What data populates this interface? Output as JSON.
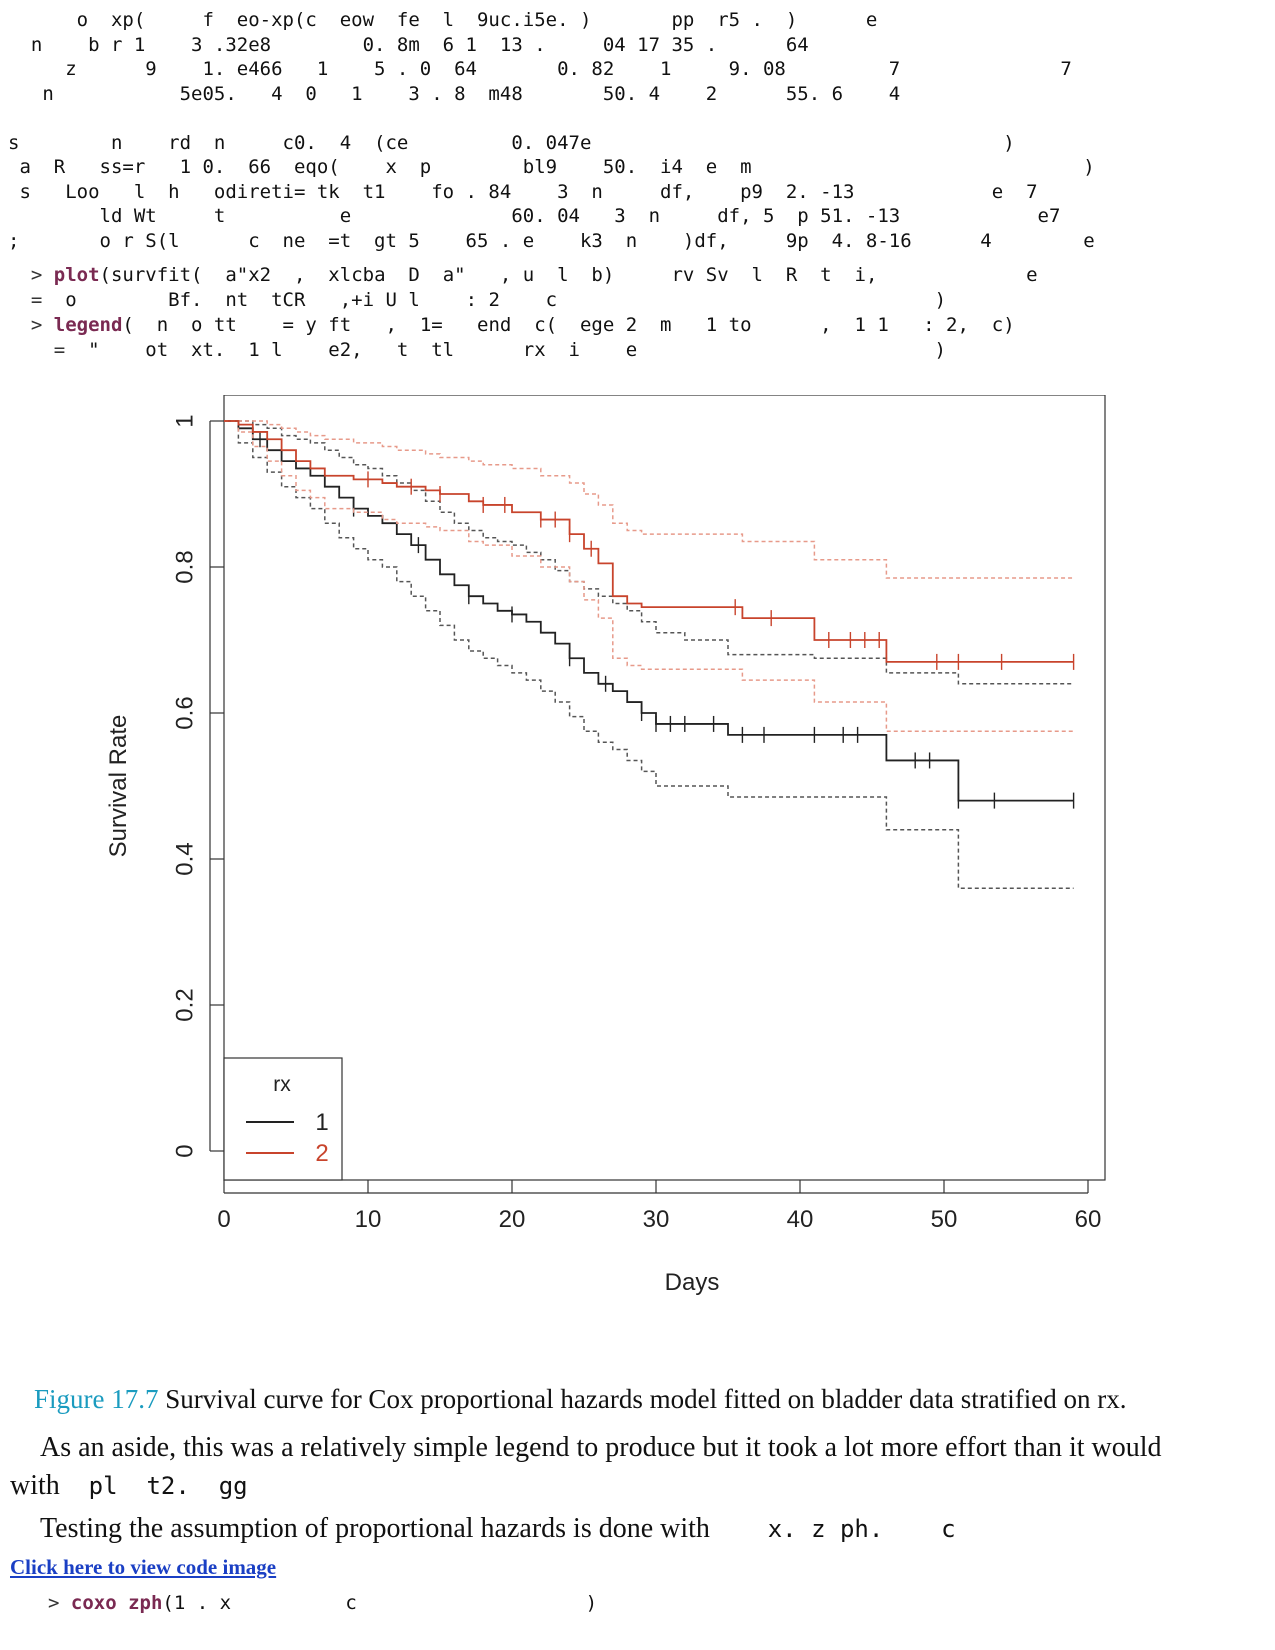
{
  "code_top": [
    "      o  xp(     f  eo-xp(c  eow  fe  l  9uc.i5e. )       pp  r5 .  )      e",
    "  n    b r 1    3 .32e8        0. 8m  6 1  13 .     04 17 35 .      64",
    "     z      9    1. e466   1    5 . 0  64       0. 82    1     9. 08         7              7",
    "   n           5e05.   4  0   1    3 . 8  m48       50. 4    2      55. 6    4",
    "",
    "s        n    rd  n     c0.  4  (ce         0. 047e                                    )",
    " a  R   ss=r   1 0.  66  eqo(    x  p        bl9    50.  i4  e  m                             )",
    " s   Loo   l  h   odireti= tk  t1    fo . 84    3  n     df,    p9  2. -13            e  7",
    "        ld Wt     t          e              60. 04   3  n     df, 5  p 51. -13            e7",
    ";       o r S(l      c  ne  =t  gt 5    65 . e    k3  n    )df,     9p  4. 8-16      4        e"
  ],
  "code_cmd": [
    {
      "prompt": "  > ",
      "fn": "plot",
      "text": "(survfit(  a\"x2  ,  xlcba  D  a\"   , u  l  b)     rv Sv  l  R  t  i,             e"
    },
    {
      "prompt": "  =  ",
      "fn": "",
      "text": "o        Bf.  nt  tCR   ,+i U l    : 2    c                                 )"
    },
    {
      "prompt": "  > ",
      "fn": "legend",
      "text": "(  n  o tt    = y ft   ,  1=   end  c(  ege 2  m   1 to      ,  1 1   : 2,  c)"
    },
    {
      "prompt": "    =  ",
      "fn": "",
      "text": "\"    ot  xt.  1 l    e2,   t  tl      rx  i    e                          )"
    }
  ],
  "chart_data": {
    "type": "line",
    "subtype": "step",
    "xlabel": "Days",
    "ylabel": "Survival Rate",
    "xlim": [
      0,
      60
    ],
    "ylim": [
      0,
      1
    ],
    "xticks": [
      0,
      10,
      20,
      30,
      40,
      50,
      60
    ],
    "yticks": [
      0.0,
      0.2,
      0.4,
      0.6,
      0.8,
      1.0
    ],
    "legend": {
      "title": "rx",
      "placement": "bottom-left",
      "entries": [
        "1",
        "2"
      ]
    },
    "series": [
      {
        "name": "1",
        "color": "#222222",
        "x": [
          0,
          1,
          2,
          3,
          4,
          5,
          6,
          7,
          8,
          9,
          10,
          11,
          12,
          13,
          14,
          15,
          16,
          17,
          18,
          19,
          20,
          21,
          22,
          23,
          24,
          25,
          26,
          27,
          28,
          29,
          30,
          32,
          35,
          41,
          46,
          51,
          59
        ],
        "y": [
          1.0,
          0.99,
          0.975,
          0.96,
          0.945,
          0.935,
          0.925,
          0.91,
          0.895,
          0.88,
          0.87,
          0.86,
          0.845,
          0.83,
          0.81,
          0.79,
          0.775,
          0.76,
          0.75,
          0.74,
          0.735,
          0.725,
          0.71,
          0.695,
          0.675,
          0.655,
          0.64,
          0.63,
          0.615,
          0.6,
          0.585,
          0.585,
          0.57,
          0.57,
          0.535,
          0.48,
          0.48
        ],
        "ci_upper": [
          1.0,
          1.0,
          0.995,
          0.99,
          0.98,
          0.975,
          0.97,
          0.96,
          0.95,
          0.94,
          0.935,
          0.925,
          0.915,
          0.905,
          0.89,
          0.875,
          0.86,
          0.85,
          0.84,
          0.835,
          0.83,
          0.82,
          0.81,
          0.795,
          0.78,
          0.77,
          0.76,
          0.75,
          0.74,
          0.725,
          0.71,
          0.7,
          0.68,
          0.675,
          0.655,
          0.64,
          0.64
        ],
        "ci_lower": [
          1.0,
          0.97,
          0.95,
          0.93,
          0.91,
          0.895,
          0.88,
          0.86,
          0.84,
          0.825,
          0.81,
          0.8,
          0.78,
          0.76,
          0.74,
          0.72,
          0.7,
          0.685,
          0.675,
          0.665,
          0.655,
          0.645,
          0.63,
          0.615,
          0.595,
          0.575,
          0.56,
          0.55,
          0.535,
          0.52,
          0.5,
          0.5,
          0.485,
          0.485,
          0.44,
          0.36,
          0.36
        ],
        "censor_x": [
          2.5,
          9,
          13.5,
          17,
          20,
          24,
          26.5,
          29,
          30,
          31,
          32,
          34,
          36,
          37.5,
          41,
          43,
          44,
          48,
          49,
          51,
          53.5,
          59
        ]
      },
      {
        "name": "2",
        "color": "#c8442c",
        "x": [
          0,
          1,
          2,
          3,
          4,
          5,
          6,
          7,
          9,
          11,
          12,
          14,
          15,
          17,
          18,
          20,
          22,
          24,
          25,
          26,
          27,
          28,
          29,
          36,
          41,
          46,
          59
        ],
        "y": [
          1.0,
          0.995,
          0.985,
          0.975,
          0.96,
          0.945,
          0.935,
          0.925,
          0.92,
          0.915,
          0.91,
          0.905,
          0.9,
          0.89,
          0.885,
          0.875,
          0.865,
          0.845,
          0.825,
          0.805,
          0.76,
          0.75,
          0.745,
          0.73,
          0.7,
          0.67,
          0.67
        ],
        "ci_upper": [
          1.0,
          1.0,
          1.0,
          0.995,
          0.99,
          0.985,
          0.98,
          0.975,
          0.97,
          0.965,
          0.96,
          0.955,
          0.95,
          0.945,
          0.94,
          0.935,
          0.925,
          0.915,
          0.9,
          0.885,
          0.86,
          0.85,
          0.845,
          0.835,
          0.81,
          0.785,
          0.785
        ],
        "ci_lower": [
          1.0,
          0.985,
          0.965,
          0.945,
          0.925,
          0.905,
          0.895,
          0.88,
          0.875,
          0.865,
          0.86,
          0.855,
          0.85,
          0.835,
          0.83,
          0.815,
          0.8,
          0.78,
          0.755,
          0.73,
          0.675,
          0.665,
          0.66,
          0.645,
          0.615,
          0.575,
          0.575
        ],
        "censor_x": [
          10,
          13,
          15,
          18,
          19.5,
          22,
          23,
          24,
          25.5,
          35.5,
          38,
          42,
          43.5,
          44.5,
          45.5,
          49.5,
          51,
          54,
          59
        ]
      }
    ]
  },
  "caption": {
    "label": "Figure 17.7",
    "text": " Survival curve for Cox proportional hazards model fitted on bladder data stratified on rx."
  },
  "para1": {
    "line1": "As an aside, this was a relatively simple legend to produce but it took a lot more effort than it would",
    "line2_text": "with",
    "line2_code": "  pl  t2.  gg"
  },
  "para2": {
    "text": "Testing the assumption of proportional hazards is done with",
    "code": "    x. z ph.    c"
  },
  "code_link": "Click here to view code image",
  "code_bottom": {
    "prompt": "> ",
    "fn": "coxo zph",
    "text": "(1 . x          c                    )"
  }
}
